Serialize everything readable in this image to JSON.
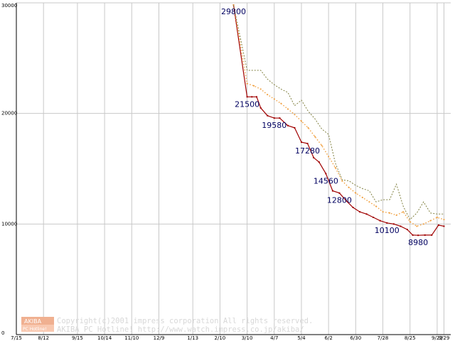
{
  "chart_data": {
    "type": "line",
    "xlabel": "",
    "ylabel": "",
    "ylim": [
      0,
      30000
    ],
    "grid": true,
    "y_ticks": [
      {
        "value": 0,
        "label": "0"
      },
      {
        "value": 10000,
        "label": "10000"
      },
      {
        "value": 20000,
        "label": "20000"
      },
      {
        "value": 30000,
        "label": "30000"
      }
    ],
    "x_ticks": [
      {
        "week": 0,
        "label": "7/15"
      },
      {
        "week": 4,
        "label": "8/12"
      },
      {
        "week": 9,
        "label": "9/15"
      },
      {
        "week": 13,
        "label": "10/14"
      },
      {
        "week": 17,
        "label": "11/10"
      },
      {
        "week": 21,
        "label": "12/9"
      },
      {
        "week": 26,
        "label": "1/13"
      },
      {
        "week": 30,
        "label": "2/10"
      },
      {
        "week": 34,
        "label": "3/10"
      },
      {
        "week": 38,
        "label": "4/7"
      },
      {
        "week": 42,
        "label": "5/4"
      },
      {
        "week": 46,
        "label": "6/2"
      },
      {
        "week": 50,
        "label": "6/30"
      },
      {
        "week": 54,
        "label": "7/28"
      },
      {
        "week": 58,
        "label": "8/25"
      },
      {
        "week": 62,
        "label": "9/22"
      },
      {
        "week": 63,
        "label": "9/29"
      }
    ],
    "x_range": [
      0,
      64
    ],
    "series": [
      {
        "color": "#a00000",
        "style": "solid",
        "points": [
          [
            32,
            29800
          ],
          [
            34,
            21500
          ],
          [
            34.7,
            21500
          ],
          [
            35.4,
            21500
          ],
          [
            36,
            20500
          ],
          [
            37,
            19800
          ],
          [
            38,
            19580
          ],
          [
            38.8,
            19580
          ],
          [
            40,
            18900
          ],
          [
            41,
            18700
          ],
          [
            42,
            17400
          ],
          [
            42.9,
            17280
          ],
          [
            43.8,
            16000
          ],
          [
            44.6,
            15600
          ],
          [
            45.6,
            14560
          ],
          [
            46.6,
            13000
          ],
          [
            47.6,
            12800
          ],
          [
            48.6,
            12100
          ],
          [
            49.6,
            11500
          ],
          [
            50.6,
            11100
          ],
          [
            51.6,
            10900
          ],
          [
            52.6,
            10600
          ],
          [
            53.6,
            10300
          ],
          [
            54.6,
            10100
          ],
          [
            55.6,
            10000
          ],
          [
            56.6,
            9800
          ],
          [
            57.6,
            9500
          ],
          [
            58.4,
            9000
          ],
          [
            59.2,
            8980
          ],
          [
            60.2,
            9000
          ],
          [
            61.2,
            9000
          ],
          [
            62.2,
            9900
          ],
          [
            63,
            9800
          ]
        ]
      },
      {
        "color": "#f0a040",
        "style": "dotted",
        "points": [
          [
            32,
            29800
          ],
          [
            34,
            22700
          ],
          [
            35,
            22500
          ],
          [
            36,
            22200
          ],
          [
            37,
            21700
          ],
          [
            38,
            21300
          ],
          [
            39,
            20900
          ],
          [
            40,
            20400
          ],
          [
            41,
            19900
          ],
          [
            42,
            19300
          ],
          [
            43,
            18700
          ],
          [
            44,
            17900
          ],
          [
            45,
            17100
          ],
          [
            46,
            16100
          ],
          [
            47,
            15100
          ],
          [
            48,
            13900
          ],
          [
            49,
            13300
          ],
          [
            50,
            12800
          ],
          [
            51,
            12400
          ],
          [
            52,
            12000
          ],
          [
            53,
            11600
          ],
          [
            54,
            11100
          ],
          [
            55,
            11000
          ],
          [
            56,
            10800
          ],
          [
            57,
            11100
          ],
          [
            58,
            10200
          ],
          [
            59,
            9800
          ],
          [
            60,
            10000
          ],
          [
            61,
            10300
          ],
          [
            62,
            10600
          ],
          [
            63,
            10400
          ]
        ]
      },
      {
        "color": "#808040",
        "style": "dotted",
        "points": [
          [
            32,
            29800
          ],
          [
            34,
            23900
          ],
          [
            36,
            23900
          ],
          [
            37,
            23100
          ],
          [
            38,
            22600
          ],
          [
            39,
            22200
          ],
          [
            40,
            21900
          ],
          [
            41,
            20700
          ],
          [
            42,
            21200
          ],
          [
            43,
            20200
          ],
          [
            44,
            19500
          ],
          [
            45,
            18600
          ],
          [
            46,
            18100
          ],
          [
            47,
            15500
          ],
          [
            48,
            14000
          ],
          [
            49,
            13900
          ],
          [
            50,
            13500
          ],
          [
            51,
            13200
          ],
          [
            52,
            13000
          ],
          [
            53,
            12000
          ],
          [
            54,
            12200
          ],
          [
            55,
            12200
          ],
          [
            56,
            13600
          ],
          [
            57,
            11600
          ],
          [
            58,
            10400
          ],
          [
            59,
            11000
          ],
          [
            60,
            12000
          ],
          [
            61,
            11000
          ],
          [
            62,
            10900
          ],
          [
            63,
            10900
          ]
        ]
      }
    ],
    "data_labels": [
      {
        "x": 32,
        "y": 29800,
        "text": "29800"
      },
      {
        "x": 34,
        "y": 21500,
        "text": "21500"
      },
      {
        "x": 38,
        "y": 19580,
        "text": "19580"
      },
      {
        "x": 42.9,
        "y": 17280,
        "text": "17280"
      },
      {
        "x": 45.6,
        "y": 14560,
        "text": "14560"
      },
      {
        "x": 47.6,
        "y": 12800,
        "text": "12800"
      },
      {
        "x": 54.6,
        "y": 10100,
        "text": "10100"
      },
      {
        "x": 59.2,
        "y": 8980,
        "text": "8980"
      }
    ]
  },
  "watermark": {
    "logo_text": "AKIBA",
    "logo_subtext": "PC Hotline!",
    "copyright_line": "Copyright(c)2001 impress corporation All rights reserved.",
    "url_line": "AKIBA PC Hotline!  http://www.watch.impress.co.jp/akiba/"
  }
}
